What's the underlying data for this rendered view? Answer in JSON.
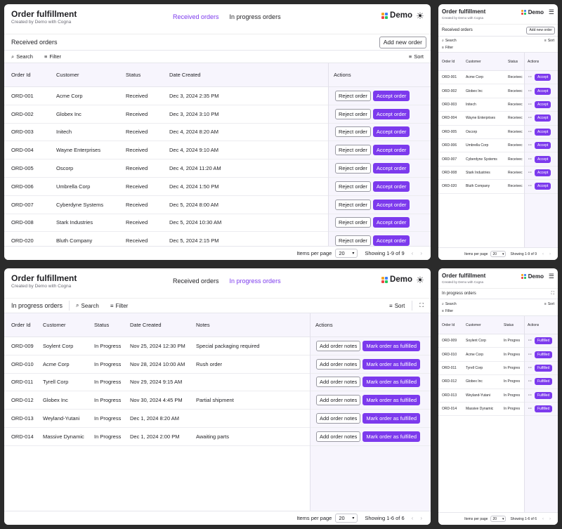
{
  "app": {
    "title": "Order fulfillment",
    "subtitle": "Created by Demo with Cogna",
    "brand": "Demo",
    "logo_colors": [
      "#f5a524",
      "#3b82f6",
      "#ef4444",
      "#22c55e"
    ],
    "accent": "#7c3aed",
    "tabs": [
      "Received orders",
      "In progress orders"
    ]
  },
  "toolbar": {
    "search": "Search",
    "filter": "Filter",
    "sort": "Sort",
    "add_new_order": "Add new order"
  },
  "received": {
    "heading": "Received orders",
    "columns": [
      "Order Id",
      "Customer",
      "Status",
      "Date Created",
      "Actions"
    ],
    "reject_label": "Reject order",
    "accept_label": "Accept order",
    "accept_short": "Accept",
    "rows": [
      {
        "id": "ORD-001",
        "customer": "Acme Corp",
        "status": "Received",
        "date": "Dec 3, 2024 2:35 PM"
      },
      {
        "id": "ORD-002",
        "customer": "Globex Inc",
        "status": "Received",
        "date": "Dec 3, 2024 3:10 PM"
      },
      {
        "id": "ORD-003",
        "customer": "Initech",
        "status": "Received",
        "date": "Dec 4, 2024 8:20 AM"
      },
      {
        "id": "ORD-004",
        "customer": "Wayne Enterprises",
        "status": "Received",
        "date": "Dec 4, 2024 9:10 AM"
      },
      {
        "id": "ORD-005",
        "customer": "Oscorp",
        "status": "Received",
        "date": "Dec 4, 2024 11:20 AM"
      },
      {
        "id": "ORD-006",
        "customer": "Umbrella Corp",
        "status": "Received",
        "date": "Dec 4, 2024 1:50 PM"
      },
      {
        "id": "ORD-007",
        "customer": "Cyberdyne Systems",
        "status": "Received",
        "date": "Dec 5, 2024 8:00 AM"
      },
      {
        "id": "ORD-008",
        "customer": "Stark Industries",
        "status": "Received",
        "date": "Dec 5, 2024 10:30 AM"
      },
      {
        "id": "ORD-020",
        "customer": "Bluth Company",
        "status": "Received",
        "date": "Dec 5, 2024 2:15 PM"
      }
    ],
    "small_status": "Receivec",
    "footer": {
      "items_per_page": "Items per page",
      "page_size": "20",
      "showing": "Showing 1-9 of 9"
    }
  },
  "inprogress": {
    "heading": "In progress orders",
    "columns": [
      "Order Id",
      "Customer",
      "Status",
      "Date Created",
      "Notes",
      "Actions"
    ],
    "notes_label": "Add order notes",
    "fulfill_label": "Mark order as fulfilled",
    "fulfill_short": "Fulfilled",
    "rows": [
      {
        "id": "ORD-009",
        "customer": "Soylent Corp",
        "status": "In Progress",
        "date": "Nov 25, 2024 12:30 PM",
        "notes": "Special packaging required"
      },
      {
        "id": "ORD-010",
        "customer": "Acme Corp",
        "status": "In Progress",
        "date": "Nov 28, 2024 10:00 AM",
        "notes": "Rush order"
      },
      {
        "id": "ORD-011",
        "customer": "Tyrell Corp",
        "status": "In Progress",
        "date": "Nov 29, 2024 9:15 AM",
        "notes": ""
      },
      {
        "id": "ORD-012",
        "customer": "Globex Inc",
        "status": "In Progress",
        "date": "Nov 30, 2024 4:45 PM",
        "notes": "Partial shipment"
      },
      {
        "id": "ORD-013",
        "customer": "Weyland-Yutani",
        "status": "In Progress",
        "date": "Dec 1, 2024 8:20 AM",
        "notes": ""
      },
      {
        "id": "ORD-014",
        "customer": "Massive Dynamic",
        "status": "In Progress",
        "date": "Dec 1, 2024 2:00 PM",
        "notes": "Awaiting parts"
      }
    ],
    "small_status": "In Progres",
    "footer": {
      "items_per_page": "Items per page",
      "page_size": "20",
      "showing": "Showing 1-6 of 6"
    }
  },
  "icons": {
    "search": "search-icon",
    "filter": "filter-icon",
    "sort": "sort-icon",
    "theme": "sun-icon",
    "menu": "menu-icon",
    "fullscreen": "fullscreen-icon",
    "prev": "chevron-left-icon",
    "next": "chevron-right-icon",
    "dropdown": "chevron-down-icon",
    "more": "more-icon"
  }
}
